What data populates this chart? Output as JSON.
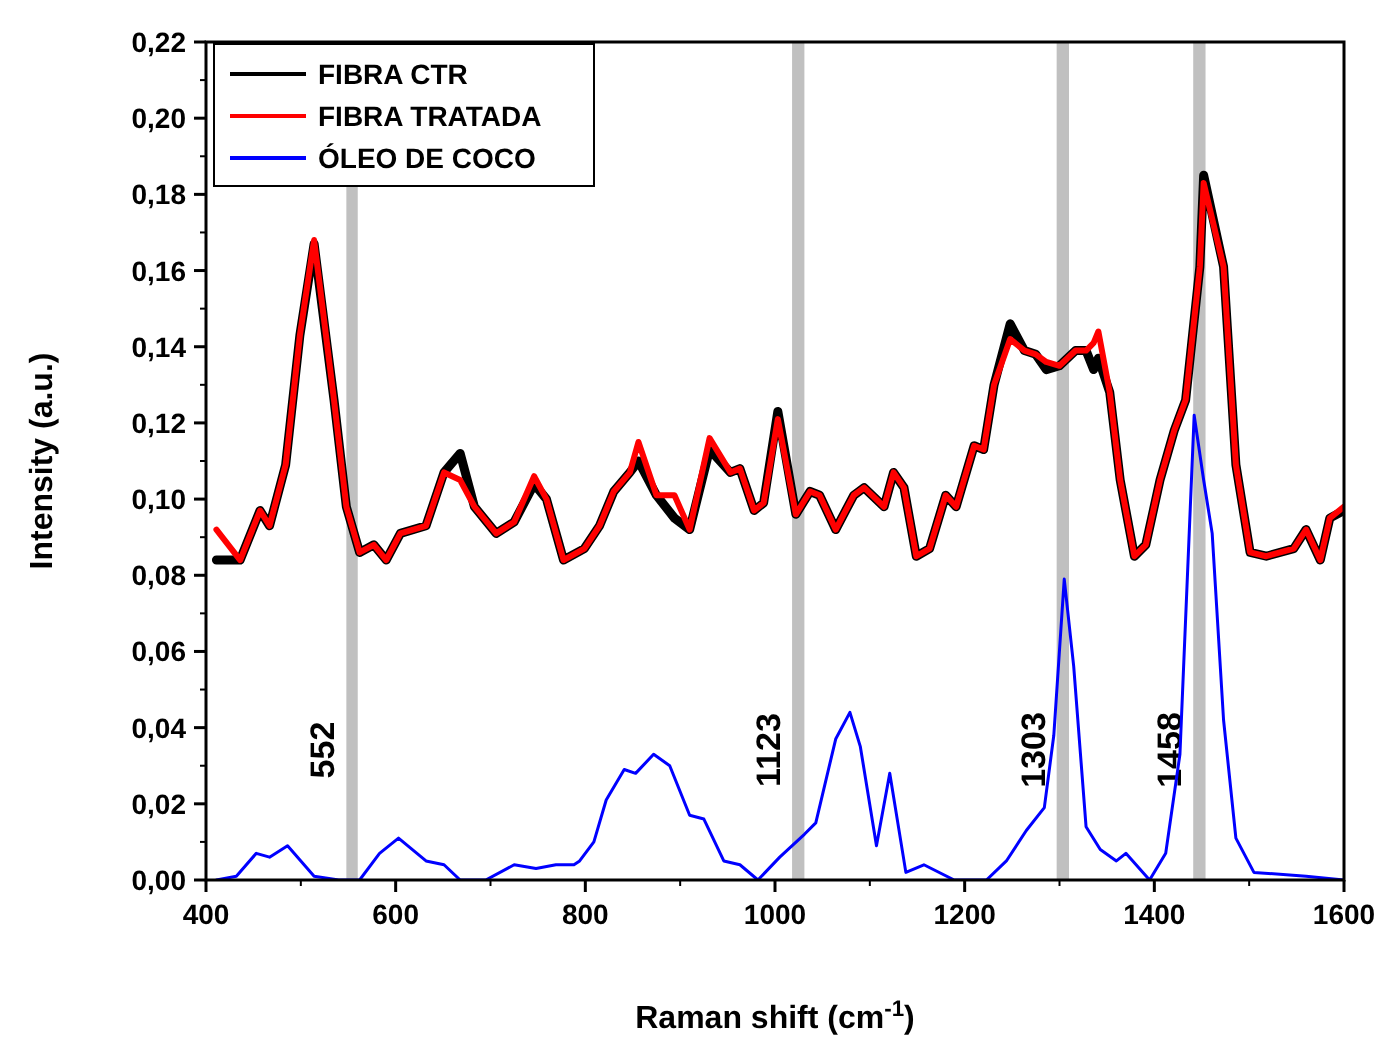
{
  "chart_data": {
    "type": "line",
    "xlabel": "Raman shift (cm$^{-1}$)",
    "ylabel": "Intensity (a.u.)",
    "xlim": [
      400,
      1600
    ],
    "ylim": [
      0,
      0.22
    ],
    "xticks": [
      400,
      600,
      800,
      1000,
      1200,
      1400,
      1600
    ],
    "yticks": [
      {
        "value": 0,
        "label": "0,00"
      },
      {
        "value": 0.02,
        "label": "0,02"
      },
      {
        "value": 0.04,
        "label": "0,04"
      },
      {
        "value": 0.06,
        "label": "0,06"
      },
      {
        "value": 0.08,
        "label": "0,08"
      },
      {
        "value": 0.1,
        "label": "0,10"
      },
      {
        "value": 0.12,
        "label": "0,12"
      },
      {
        "value": 0.14,
        "label": "0,14"
      },
      {
        "value": 0.16,
        "label": "0,16"
      },
      {
        "value": 0.18,
        "label": "0,18"
      },
      {
        "value": 0.2,
        "label": "0,20"
      },
      {
        "value": 0.22,
        "label": "0,22"
      }
    ],
    "grid": false,
    "legend": "top left",
    "marker": "none",
    "line_style": "solid",
    "bands": [
      {
        "axis": "x",
        "from": 548,
        "to": 560,
        "label": "552",
        "color": "#c0c0c0"
      },
      {
        "axis": "x",
        "from": 1018,
        "to": 1031,
        "label": "1123",
        "color": "#c0c0c0"
      },
      {
        "axis": "x",
        "from": 1297,
        "to": 1310,
        "label": "1303",
        "color": "#c0c0c0"
      },
      {
        "axis": "x",
        "from": 1441,
        "to": 1454,
        "label": "1458",
        "color": "#c0c0c0"
      }
    ],
    "series": [
      {
        "name": "FIBRA CTR",
        "color": "#000000",
        "x": [
          411,
          436,
          457,
          467,
          484,
          499,
          514,
          535,
          548,
          562,
          577,
          590,
          605,
          632,
          651,
          668,
          683,
          706,
          725,
          746,
          759,
          777,
          799,
          815,
          830,
          847,
          856,
          875,
          894,
          910,
          931,
          953,
          963,
          978,
          988,
          1003,
          1022,
          1037,
          1047,
          1064,
          1083,
          1094,
          1115,
          1125,
          1136,
          1149,
          1163,
          1180,
          1191,
          1210,
          1220,
          1231,
          1248,
          1263,
          1275,
          1286,
          1300,
          1317,
          1328,
          1336,
          1341,
          1353,
          1364,
          1379,
          1391,
          1406,
          1421,
          1433,
          1448,
          1452,
          1473,
          1486,
          1501,
          1518,
          1547,
          1560,
          1575,
          1585,
          1600
        ],
        "values": [
          0.084,
          0.084,
          0.097,
          0.093,
          0.109,
          0.143,
          0.167,
          0.126,
          0.098,
          0.086,
          0.088,
          0.084,
          0.091,
          0.093,
          0.107,
          0.112,
          0.098,
          0.091,
          0.094,
          0.104,
          0.1,
          0.084,
          0.087,
          0.093,
          0.102,
          0.107,
          0.11,
          0.101,
          0.095,
          0.092,
          0.113,
          0.107,
          0.108,
          0.097,
          0.099,
          0.123,
          0.096,
          0.102,
          0.101,
          0.092,
          0.101,
          0.103,
          0.098,
          0.107,
          0.103,
          0.085,
          0.087,
          0.101,
          0.098,
          0.114,
          0.113,
          0.13,
          0.146,
          0.139,
          0.138,
          0.134,
          0.135,
          0.139,
          0.139,
          0.134,
          0.137,
          0.128,
          0.105,
          0.085,
          0.088,
          0.105,
          0.118,
          0.126,
          0.161,
          0.185,
          0.161,
          0.109,
          0.086,
          0.085,
          0.087,
          0.092,
          0.084,
          0.095,
          0.097
        ]
      },
      {
        "name": "FIBRA TRATADA",
        "color": "#ff0000",
        "x": [
          411,
          436,
          457,
          467,
          484,
          499,
          514,
          535,
          548,
          562,
          577,
          590,
          605,
          632,
          651,
          668,
          683,
          706,
          725,
          746,
          759,
          777,
          799,
          815,
          830,
          847,
          856,
          875,
          894,
          910,
          931,
          953,
          963,
          978,
          988,
          1003,
          1022,
          1037,
          1047,
          1064,
          1083,
          1094,
          1115,
          1125,
          1136,
          1149,
          1163,
          1180,
          1191,
          1210,
          1220,
          1231,
          1248,
          1263,
          1275,
          1286,
          1300,
          1317,
          1328,
          1336,
          1341,
          1353,
          1364,
          1379,
          1391,
          1406,
          1421,
          1433,
          1448,
          1452,
          1473,
          1486,
          1501,
          1518,
          1547,
          1560,
          1575,
          1585,
          1600
        ],
        "values": [
          0.092,
          0.084,
          0.097,
          0.093,
          0.109,
          0.143,
          0.168,
          0.126,
          0.098,
          0.086,
          0.088,
          0.084,
          0.091,
          0.093,
          0.107,
          0.105,
          0.098,
          0.091,
          0.094,
          0.106,
          0.1,
          0.084,
          0.087,
          0.093,
          0.102,
          0.107,
          0.115,
          0.101,
          0.101,
          0.092,
          0.116,
          0.107,
          0.108,
          0.097,
          0.099,
          0.121,
          0.096,
          0.102,
          0.101,
          0.092,
          0.101,
          0.103,
          0.098,
          0.107,
          0.103,
          0.085,
          0.087,
          0.101,
          0.098,
          0.114,
          0.113,
          0.13,
          0.142,
          0.139,
          0.138,
          0.136,
          0.135,
          0.139,
          0.139,
          0.141,
          0.144,
          0.128,
          0.105,
          0.085,
          0.088,
          0.105,
          0.118,
          0.126,
          0.161,
          0.183,
          0.161,
          0.109,
          0.086,
          0.085,
          0.087,
          0.092,
          0.084,
          0.095,
          0.098
        ]
      },
      {
        "name": "ÓLEO DE COCO",
        "color": "#0000ff",
        "x": [
          411,
          432,
          453,
          467,
          486,
          514,
          540,
          562,
          583,
          603,
          632,
          651,
          668,
          695,
          725,
          748,
          769,
          788,
          794,
          809,
          822,
          841,
          853,
          872,
          889,
          910,
          925,
          946,
          963,
          982,
          1005,
          1031,
          1043,
          1064,
          1079,
          1090,
          1107,
          1121,
          1138,
          1157,
          1189,
          1223,
          1244,
          1265,
          1284,
          1294,
          1305,
          1315,
          1328,
          1343,
          1360,
          1370,
          1395,
          1412,
          1427,
          1442,
          1452,
          1461,
          1473,
          1486,
          1505,
          1560,
          1600
        ],
        "values": [
          0.0,
          0.001,
          0.007,
          0.006,
          0.009,
          0.001,
          0.0,
          0.0,
          0.007,
          0.011,
          0.005,
          0.004,
          0.0,
          0.0,
          0.004,
          0.003,
          0.004,
          0.004,
          0.005,
          0.01,
          0.021,
          0.029,
          0.028,
          0.033,
          0.03,
          0.017,
          0.016,
          0.005,
          0.004,
          0.0,
          0.006,
          0.012,
          0.015,
          0.037,
          0.044,
          0.035,
          0.009,
          0.028,
          0.002,
          0.004,
          0.0,
          0.0,
          0.005,
          0.013,
          0.019,
          0.038,
          0.079,
          0.056,
          0.014,
          0.008,
          0.005,
          0.007,
          0.0,
          0.007,
          0.033,
          0.122,
          0.105,
          0.091,
          0.042,
          0.011,
          0.002,
          0.001,
          0.0
        ]
      }
    ]
  }
}
